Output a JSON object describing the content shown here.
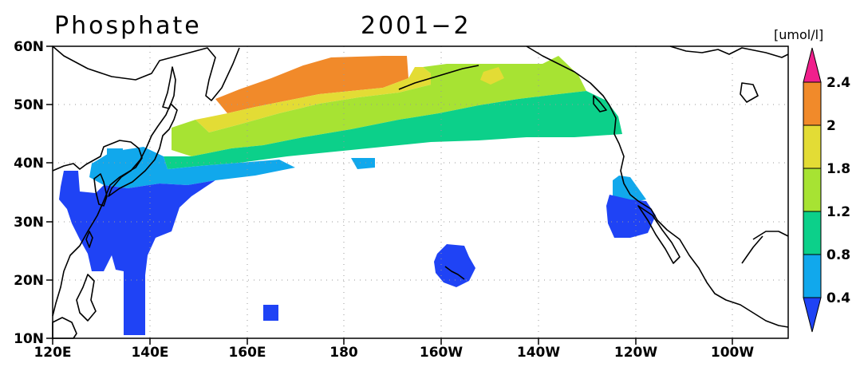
{
  "title": {
    "variable": "Phosphate",
    "period": "2001−2"
  },
  "units": "[umol/l]",
  "axes": {
    "lon_labels": [
      "120E",
      "140E",
      "160E",
      "180",
      "160W",
      "140W",
      "120W",
      "100W"
    ],
    "lat_labels": [
      "10N",
      "20N",
      "30N",
      "40N",
      "50N",
      "60N"
    ],
    "lon_range_deg_east": [
      120,
      270
    ],
    "lat_range_deg": [
      10,
      60
    ],
    "grid": "dotted"
  },
  "colorbar": {
    "labels": [
      "0.4",
      "0.8",
      "1.2",
      "1.8",
      "2",
      "2.4"
    ],
    "colors": [
      "#1f43f5",
      "#11a8ec",
      "#0cd08a",
      "#a7e333",
      "#e3dc35",
      "#f18a2a",
      "#f01f8c"
    ],
    "extends": "both",
    "placement": "right"
  },
  "colors": {
    "land_outline": "#000000",
    "background": "#ffffff"
  }
}
